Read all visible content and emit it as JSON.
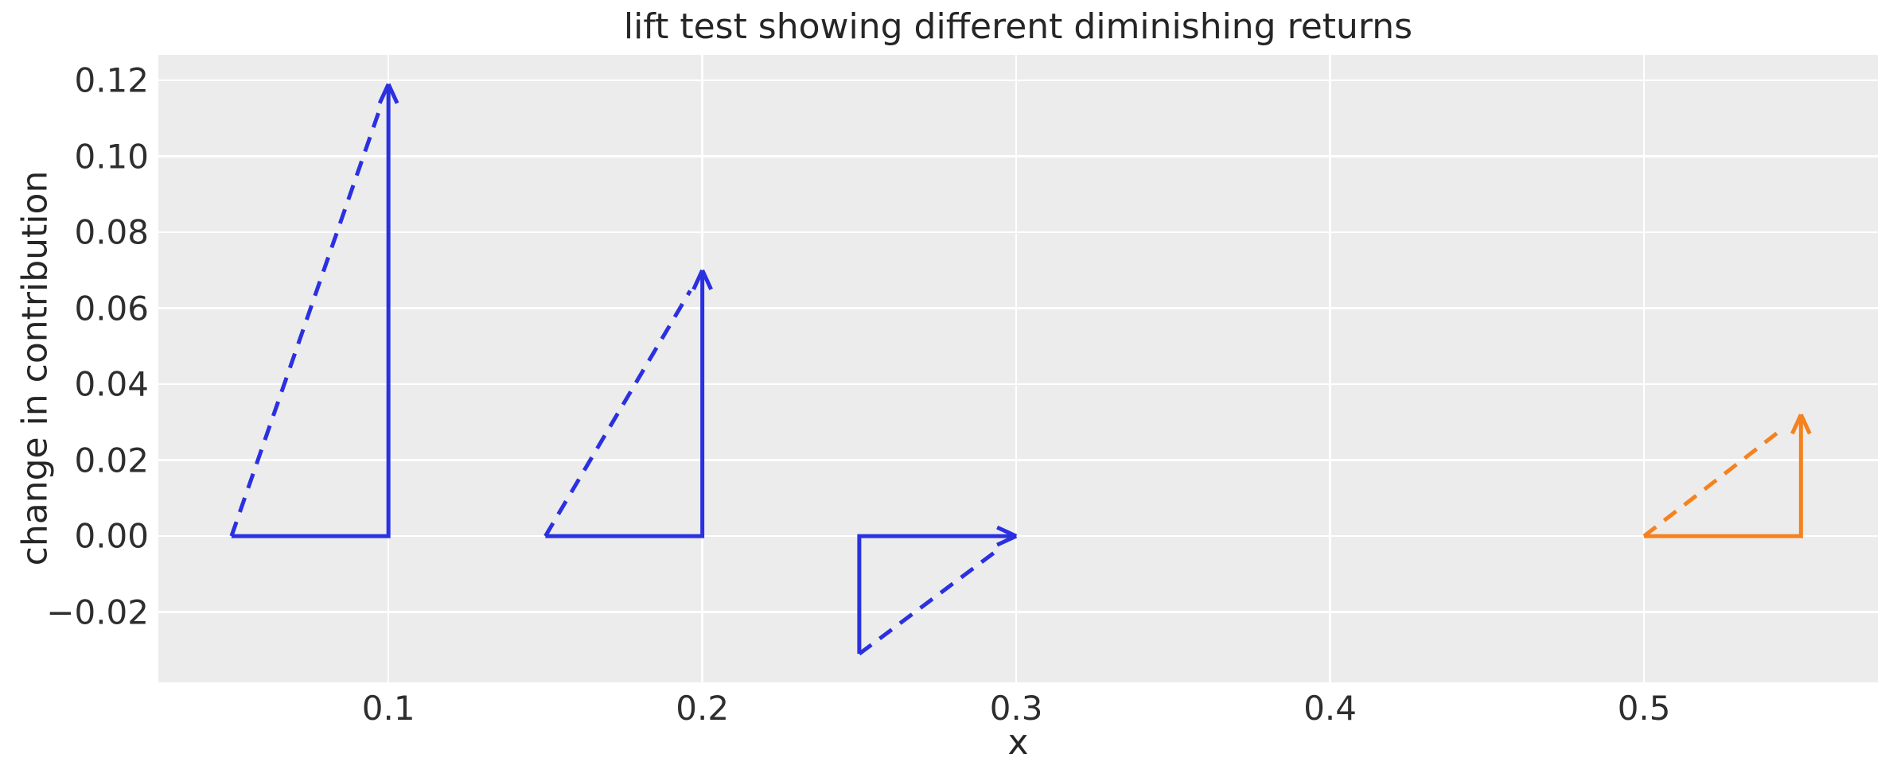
{
  "colors": {
    "blue_line": "#2b30e0",
    "orange_line": "#f5821f",
    "plot_background": "#ececec",
    "gridline": "#ffffff",
    "tick_text": "#2e2e2e",
    "title_text": "#262626",
    "page_background": "#ffffff"
  },
  "chart_data": {
    "type": "line",
    "title": "lift test showing different diminishing returns",
    "xlabel": "x",
    "ylabel": "change in contribution",
    "xlim": [
      0.0267,
      0.5745
    ],
    "ylim": [
      -0.0385,
      0.1267
    ],
    "grid": true,
    "legend": false,
    "xticks": {
      "values": [
        0.1,
        0.2,
        0.3,
        0.4,
        0.5
      ],
      "labels": [
        "0.1",
        "0.2",
        "0.3",
        "0.4",
        "0.5"
      ]
    },
    "yticks": {
      "values": [
        -0.02,
        0.0,
        0.02,
        0.04,
        0.06,
        0.08,
        0.1,
        0.12
      ],
      "labels": [
        "−0.02",
        "0.00",
        "0.02",
        "0.04",
        "0.06",
        "0.08",
        "0.10",
        "0.12"
      ]
    },
    "series": [
      {
        "name": "lift-triangle-1",
        "shape": "right-triangle",
        "color_key": "blue_line",
        "x_start": 0.05,
        "x_end": 0.1,
        "y_base": 0.0,
        "delta": 0.119,
        "direction": "up",
        "legs": "solid",
        "hypotenuse": "dashed",
        "arrow_at": "top-of-vertical-leg"
      },
      {
        "name": "lift-triangle-2",
        "shape": "right-triangle",
        "color_key": "blue_line",
        "x_start": 0.15,
        "x_end": 0.2,
        "y_base": 0.0,
        "delta": 0.07,
        "direction": "up",
        "legs": "solid",
        "hypotenuse": "dashed",
        "arrow_at": "top-of-vertical-leg"
      },
      {
        "name": "lift-triangle-3",
        "shape": "right-triangle",
        "color_key": "blue_line",
        "x_start": 0.25,
        "x_end": 0.3,
        "y_base": 0.0,
        "delta": -0.031,
        "direction": "down",
        "legs": "solid",
        "hypotenuse": "dashed",
        "arrow_at": "right-end-of-horizontal-leg"
      },
      {
        "name": "lift-triangle-4",
        "shape": "right-triangle",
        "color_key": "orange_line",
        "x_start": 0.5,
        "x_end": 0.55,
        "y_base": 0.0,
        "delta": 0.032,
        "direction": "up",
        "legs": "solid",
        "hypotenuse": "dashed",
        "arrow_at": "top-of-vertical-leg"
      }
    ]
  }
}
